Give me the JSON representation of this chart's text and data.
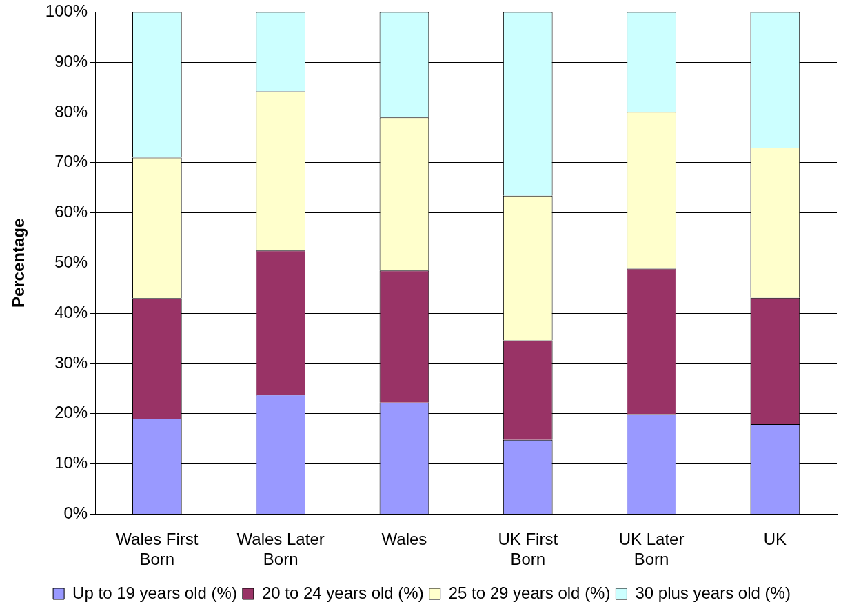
{
  "chart_data": {
    "type": "bar",
    "stacked": true,
    "ylabel": "Percentage",
    "categories": [
      "Wales First Born",
      "Wales Later Born",
      "Wales",
      "UK First Born",
      "UK Later Born",
      "UK"
    ],
    "series": [
      {
        "name": "Up to 19 years old (%)",
        "color": "#9999ff",
        "values": [
          19,
          23.8,
          22.2,
          14.8,
          19.9,
          17.9
        ]
      },
      {
        "name": "20 to 24 years old (%)",
        "color": "#993366",
        "values": [
          24,
          28.7,
          26.3,
          19.8,
          29,
          25.2
        ]
      },
      {
        "name": "25 to 29 years old (%)",
        "color": "#ffffcc",
        "values": [
          28,
          31.7,
          30.5,
          28.8,
          31.2,
          29.9
        ]
      },
      {
        "name": "30 plus years old (%)",
        "color": "#ccffff",
        "values": [
          29,
          15.8,
          21,
          36.6,
          19.9,
          27
        ]
      }
    ],
    "ylim": [
      0,
      100
    ],
    "yticks": [
      {
        "value": 0,
        "label": "0%"
      },
      {
        "value": 10,
        "label": "10%"
      },
      {
        "value": 20,
        "label": "20%"
      },
      {
        "value": 30,
        "label": "30%"
      },
      {
        "value": 40,
        "label": "40%"
      },
      {
        "value": 50,
        "label": "50%"
      },
      {
        "value": 60,
        "label": "60%"
      },
      {
        "value": 70,
        "label": "70%"
      },
      {
        "value": 80,
        "label": "80%"
      },
      {
        "value": 90,
        "label": "90%"
      },
      {
        "value": 100,
        "label": "100%"
      }
    ],
    "grid": "y",
    "legend": "bottom"
  }
}
